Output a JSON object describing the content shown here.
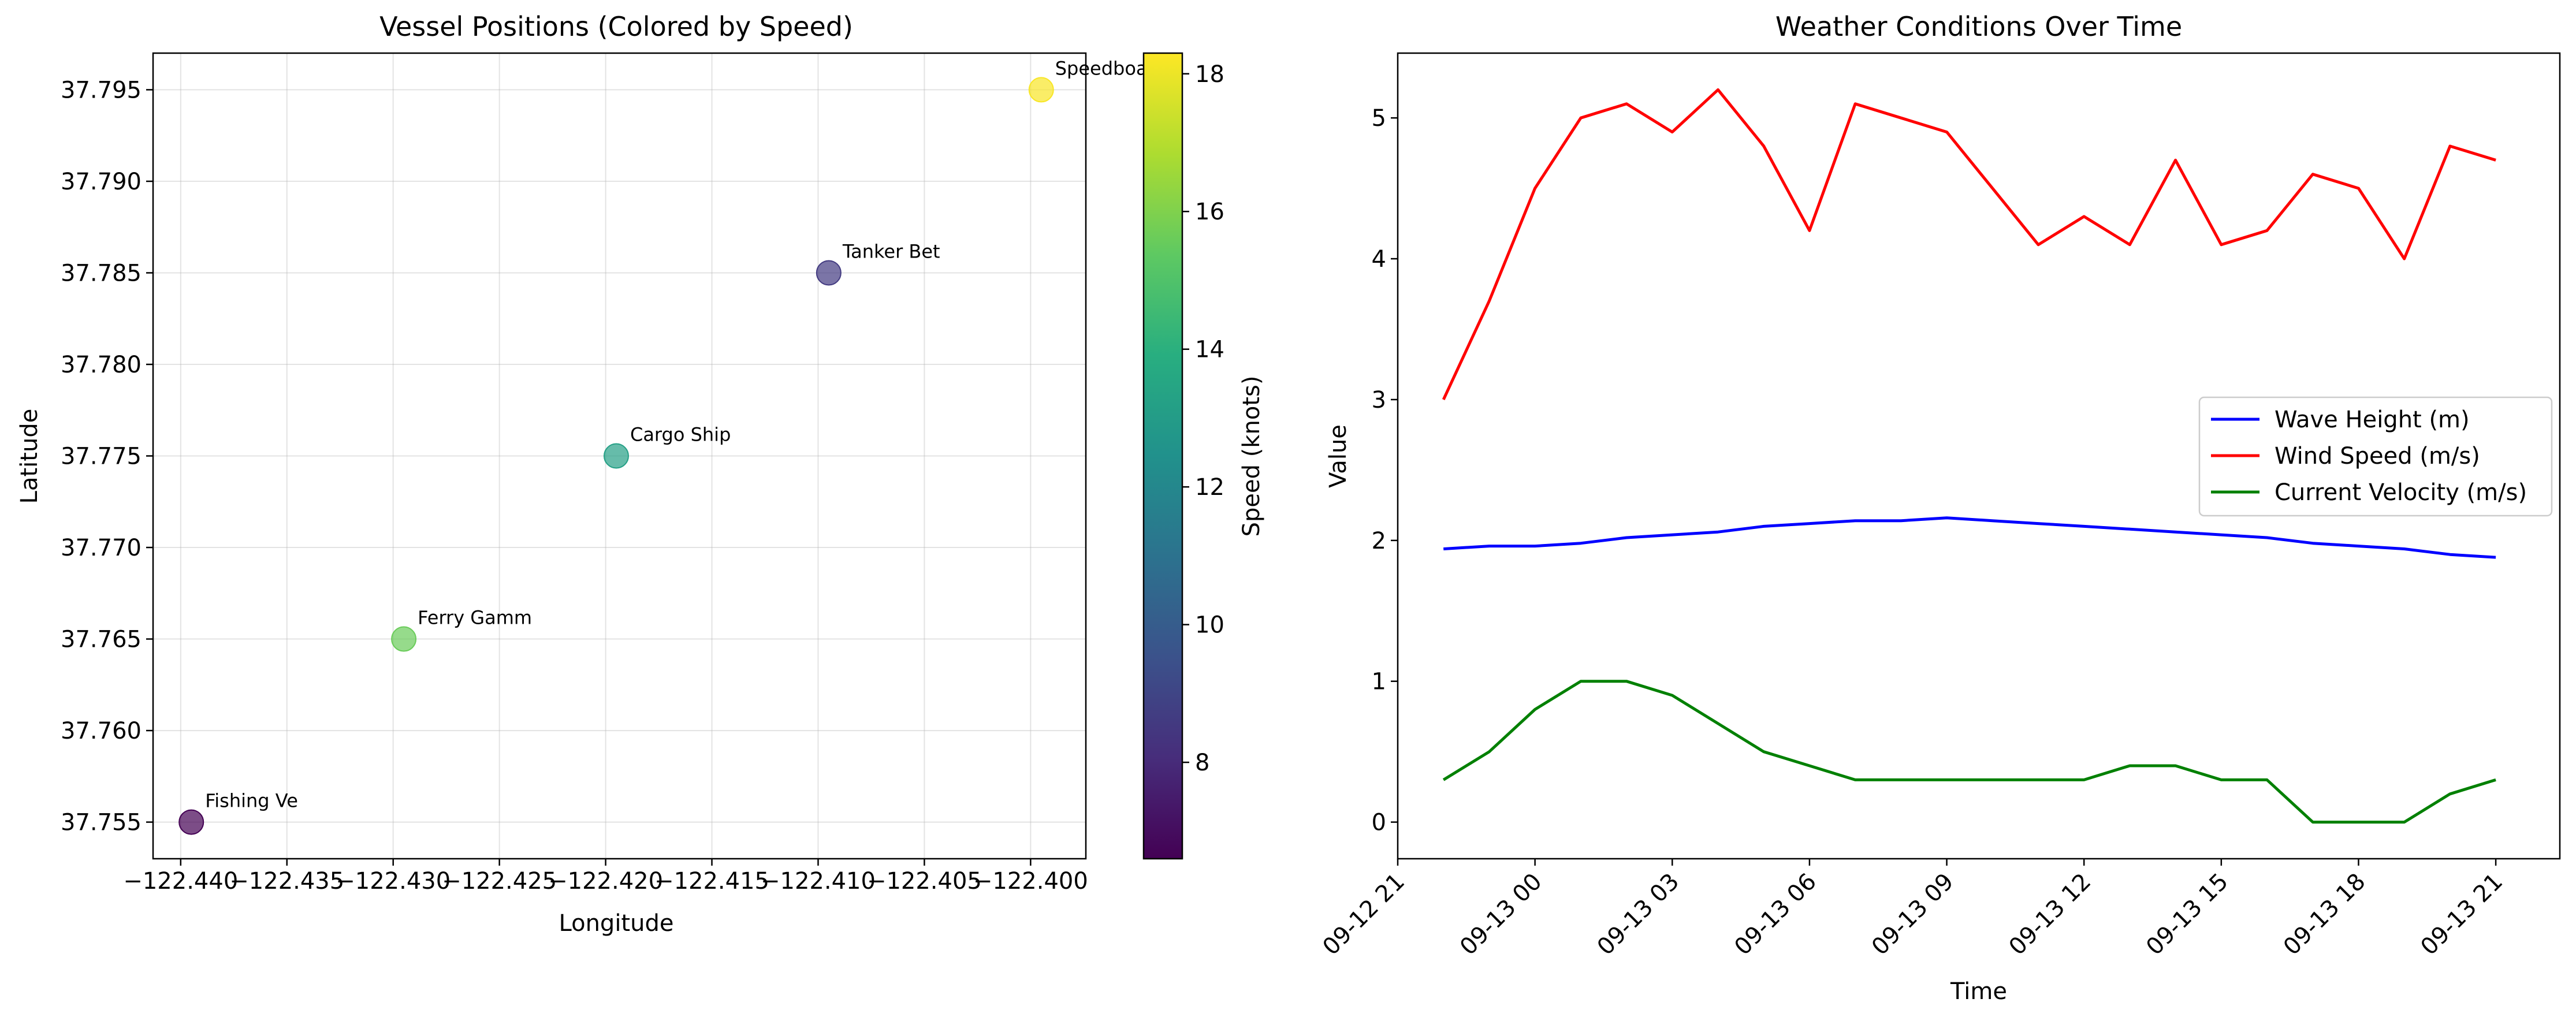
{
  "chart_data": [
    {
      "type": "scatter",
      "title": "Vessel Positions (Colored by Speed)",
      "xlabel": "Longitude",
      "ylabel": "Latitude",
      "xlim": [
        -122.4413,
        -122.3974
      ],
      "ylim": [
        37.753,
        37.797
      ],
      "xticks": [
        -122.44,
        -122.435,
        -122.43,
        -122.425,
        -122.42,
        -122.415,
        -122.41,
        -122.405,
        -122.4
      ],
      "xtick_labels": [
        "−122.440",
        "−122.435",
        "−122.430",
        "−122.425",
        "−122.420",
        "−122.415",
        "−122.410",
        "−122.405",
        "−122.400"
      ],
      "yticks": [
        37.755,
        37.76,
        37.765,
        37.77,
        37.775,
        37.78,
        37.785,
        37.79,
        37.795
      ],
      "ytick_labels": [
        "37.755",
        "37.760",
        "37.765",
        "37.770",
        "37.775",
        "37.780",
        "37.785",
        "37.790",
        "37.795"
      ],
      "grid": true,
      "colormap": "viridis",
      "points": [
        {
          "label": "Fishing Ve",
          "x": -122.4395,
          "y": 37.755,
          "speed": 6.6
        },
        {
          "label": "Ferry Gamm",
          "x": -122.4295,
          "y": 37.765,
          "speed": 15.6
        },
        {
          "label": "Cargo Ship",
          "x": -122.4195,
          "y": 37.775,
          "speed": 13.2
        },
        {
          "label": "Tanker Bet",
          "x": -122.4095,
          "y": 37.785,
          "speed": 8.6
        },
        {
          "label": "Speedboa",
          "x": -122.3995,
          "y": 37.795,
          "speed": 18.2
        }
      ],
      "colorbar": {
        "label": "Speed (knots)",
        "min": 6.6,
        "max": 18.3,
        "ticks": [
          8,
          10,
          12,
          14,
          16,
          18
        ],
        "tick_labels": [
          "8",
          "10",
          "12",
          "14",
          "16",
          "18"
        ]
      }
    },
    {
      "type": "line",
      "title": "Weather Conditions Over Time",
      "xlabel": "Time",
      "ylabel": "Value",
      "xlim": [
        -1,
        24.4
      ],
      "ylim": [
        -0.26,
        5.46
      ],
      "xticks": [
        -1,
        2,
        5,
        8,
        11,
        14,
        17,
        20,
        23
      ],
      "xtick_labels": [
        "09-12 21",
        "09-13 00",
        "09-13 03",
        "09-13 06",
        "09-13 09",
        "09-13 12",
        "09-13 15",
        "09-13 18",
        "09-13 21"
      ],
      "yticks": [
        0,
        1,
        2,
        3,
        4,
        5
      ],
      "ytick_labels": [
        "0",
        "1",
        "2",
        "3",
        "4",
        "5"
      ],
      "grid": false,
      "legend_position": "center-right",
      "x": [
        "09-12 22:00",
        "09-12 23:00",
        "09-13 00:00",
        "09-13 01:00",
        "09-13 02:00",
        "09-13 03:00",
        "09-13 04:00",
        "09-13 05:00",
        "09-13 06:00",
        "09-13 07:00",
        "09-13 08:00",
        "09-13 09:00",
        "09-13 10:00",
        "09-13 11:00",
        "09-13 12:00",
        "09-13 13:00",
        "09-13 14:00",
        "09-13 15:00",
        "09-13 16:00",
        "09-13 17:00",
        "09-13 18:00",
        "09-13 19:00",
        "09-13 20:00",
        "09-13 21:00"
      ],
      "series": [
        {
          "name": "Wave Height (m)",
          "color": "#0000ff",
          "values": [
            1.94,
            1.96,
            1.96,
            1.98,
            2.02,
            2.04,
            2.06,
            2.1,
            2.12,
            2.14,
            2.14,
            2.16,
            2.14,
            2.12,
            2.1,
            2.08,
            2.06,
            2.04,
            2.02,
            1.98,
            1.96,
            1.94,
            1.9,
            1.88
          ]
        },
        {
          "name": "Wind Speed (m/s)",
          "color": "#ff0000",
          "values": [
            3.0,
            3.7,
            4.5,
            5.0,
            5.1,
            4.9,
            5.2,
            4.8,
            4.2,
            5.1,
            5.0,
            4.9,
            4.5,
            4.1,
            4.3,
            4.1,
            4.7,
            4.1,
            4.2,
            4.6,
            4.5,
            4.0,
            4.8,
            4.7
          ]
        },
        {
          "name": "Current Velocity (m/s)",
          "color": "#008000",
          "values": [
            0.3,
            0.5,
            0.8,
            1.0,
            1.0,
            0.9,
            0.7,
            0.5,
            0.4,
            0.3,
            0.3,
            0.3,
            0.3,
            0.3,
            0.3,
            0.4,
            0.4,
            0.3,
            0.3,
            0.0,
            0.0,
            0.0,
            0.2,
            0.3
          ]
        }
      ]
    }
  ]
}
